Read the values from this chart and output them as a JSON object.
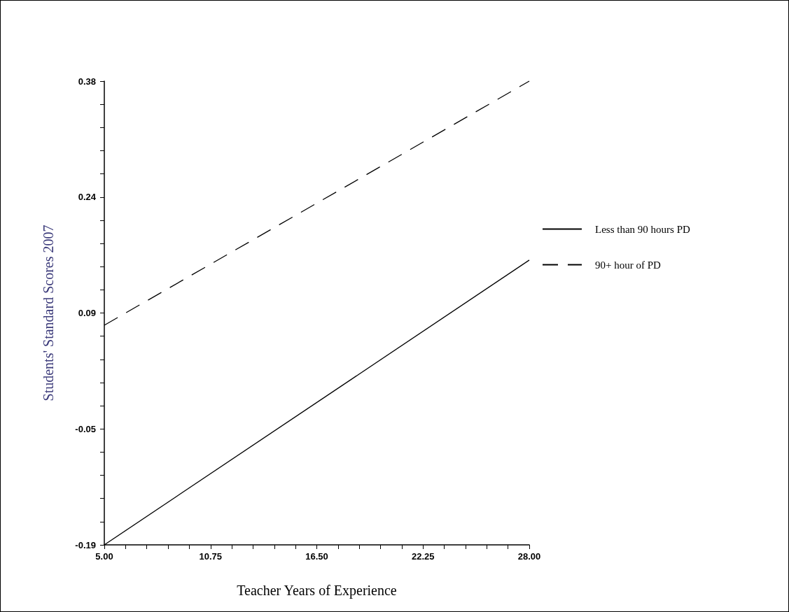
{
  "chart_data": {
    "type": "line",
    "xlabel": "Teacher Years of Experience",
    "ylabel": "Students' Standard Scores 2007",
    "series": [
      {
        "name": "Less than 90 hours PD",
        "color": "#000000",
        "values": [
          -0.19,
          0.16
        ],
        "line_style": "solid"
      },
      {
        "name": "90+ hour of PD",
        "color": "#000000",
        "values": [
          0.08,
          0.38
        ],
        "line_style": "dashed"
      }
    ],
    "x": [
      5,
      28
    ],
    "xlim": [
      5,
      28
    ],
    "xticks": [
      {
        "value": 5,
        "label": "5.00"
      },
      {
        "value": 6.15,
        "label": null
      },
      {
        "value": 7.3,
        "label": null
      },
      {
        "value": 8.45,
        "label": null
      },
      {
        "value": 9.6,
        "label": null
      },
      {
        "value": 10.75,
        "label": "10.75"
      },
      {
        "value": 11.9,
        "label": null
      },
      {
        "value": 13.05,
        "label": null
      },
      {
        "value": 14.2,
        "label": null
      },
      {
        "value": 15.35,
        "label": null
      },
      {
        "value": 16.5,
        "label": "16.50"
      },
      {
        "value": 17.65,
        "label": null
      },
      {
        "value": 18.8,
        "label": null
      },
      {
        "value": 19.95,
        "label": null
      },
      {
        "value": 21.1,
        "label": null
      },
      {
        "value": 22.25,
        "label": "22.25"
      },
      {
        "value": 23.4,
        "label": null
      },
      {
        "value": 24.55,
        "label": null
      },
      {
        "value": 25.7,
        "label": null
      },
      {
        "value": 26.85,
        "label": null
      },
      {
        "value": 28,
        "label": "28.00"
      }
    ],
    "ylim": [
      -0.19,
      0.38
    ],
    "yticks": [
      -0.19,
      {
        "value": -0.1615,
        "label": null
      },
      {
        "value": -0.133,
        "label": null
      },
      {
        "value": -0.1045,
        "label": null
      },
      {
        "value": -0.076,
        "label": null
      },
      {
        "value": -0.0475,
        "label": "-0.05"
      },
      {
        "value": -0.019,
        "label": null
      },
      {
        "value": 0.0095,
        "label": null
      },
      {
        "value": 0.038,
        "label": null
      },
      {
        "value": 0.0665,
        "label": null
      },
      {
        "value": 0.095,
        "label": "0.09"
      },
      {
        "value": 0.1235,
        "label": null
      },
      {
        "value": 0.152,
        "label": null
      },
      {
        "value": 0.1805,
        "label": null
      },
      {
        "value": 0.209,
        "label": null
      },
      {
        "value": 0.2375,
        "label": "0.24"
      },
      {
        "value": 0.266,
        "label": null
      },
      {
        "value": 0.2945,
        "label": null
      },
      {
        "value": 0.323,
        "label": null
      },
      {
        "value": 0.3515,
        "label": null
      },
      0.38
    ],
    "grid": false,
    "legend": "right",
    "marker": "none"
  }
}
